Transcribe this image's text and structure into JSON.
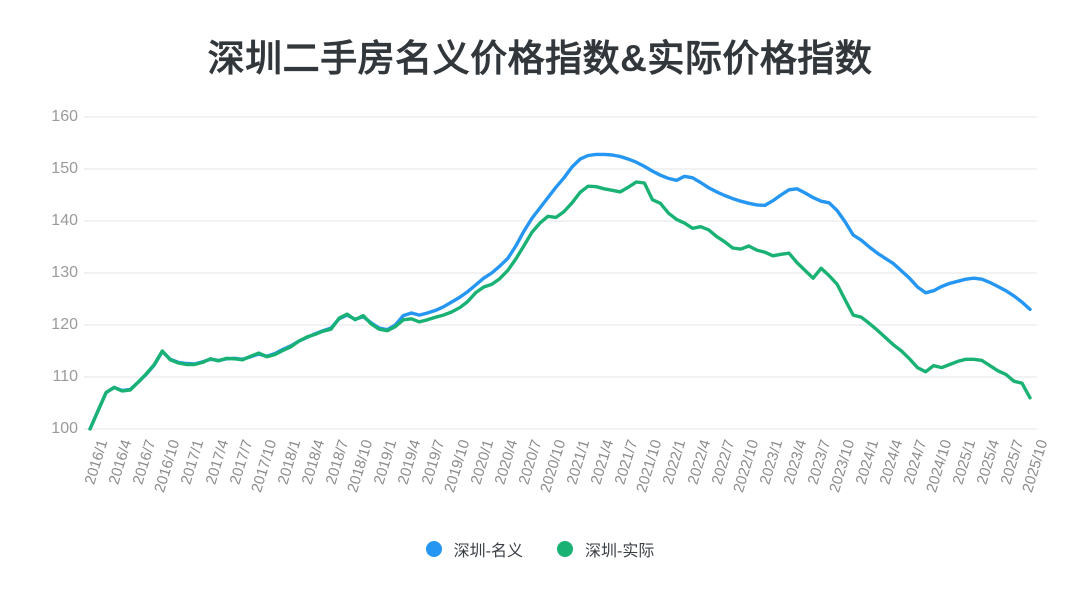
{
  "title": "深圳二手房名义价格指数&实际价格指数",
  "legend": {
    "items": [
      {
        "label": "深圳-名义",
        "color": "#2596f2"
      },
      {
        "label": "深圳-实际",
        "color": "#19b274"
      }
    ]
  },
  "colors": {
    "grid": "#e4e4e4",
    "y_axis_label": "#9a9a9a",
    "x_axis_label": "#8c8c8c",
    "title_text": "#32373c",
    "nominal_line": "#2596f2",
    "real_line": "#19b274"
  },
  "chart_data": {
    "type": "line",
    "title": "深圳二手房名义价格指数&实际价格指数",
    "xlabel": "",
    "ylabel": "",
    "ylim": [
      100,
      160
    ],
    "y_ticks": [
      100,
      110,
      120,
      130,
      140,
      150,
      160
    ],
    "grid": "horizontal",
    "legend_position": "bottom",
    "tick_labels": [
      "2016/1",
      "2016/4",
      "2016/7",
      "2016/10",
      "2017/1",
      "2017/4",
      "2017/7",
      "2017/10",
      "2018/1",
      "2018/4",
      "2018/7",
      "2018/10",
      "2019/1",
      "2019/4",
      "2019/7",
      "2019/10",
      "2020/1",
      "2020/4",
      "2020/7",
      "2020/10",
      "2021/1",
      "2021/4",
      "2021/7",
      "2021/10",
      "2022/1",
      "2022/4",
      "2022/7",
      "2022/10",
      "2023/1",
      "2023/4",
      "2023/7",
      "2023/10",
      "2024/1",
      "2024/4",
      "2024/7",
      "2024/10",
      "2025/1",
      "2025/4",
      "2025/7",
      "2025/10"
    ],
    "months_per_tick": 3,
    "series": [
      {
        "name": "深圳-名义",
        "color": "#2596f2",
        "values": [
          100.0,
          103.5,
          107.0,
          108.0,
          107.4,
          107.6,
          109.0,
          110.5,
          112.3,
          114.9,
          113.4,
          112.8,
          112.6,
          112.5,
          112.9,
          113.4,
          113.2,
          113.5,
          113.6,
          113.4,
          113.9,
          114.4,
          114.0,
          114.5,
          115.3,
          116.0,
          116.9,
          117.6,
          118.3,
          118.9,
          119.4,
          121.2,
          121.9,
          121.1,
          121.6,
          120.4,
          119.4,
          119.1,
          120.0,
          121.8,
          122.3,
          121.9,
          122.3,
          122.8,
          123.5,
          124.4,
          125.3,
          126.4,
          127.7,
          129.0,
          130.0,
          131.3,
          132.8,
          135.2,
          138.0,
          140.5,
          142.5,
          144.5,
          146.5,
          148.3,
          150.4,
          151.9,
          152.6,
          152.8,
          152.8,
          152.7,
          152.4,
          151.9,
          151.3,
          150.5,
          149.6,
          148.8,
          148.2,
          147.8,
          148.6,
          148.3,
          147.4,
          146.4,
          145.6,
          144.9,
          144.3,
          143.8,
          143.4,
          143.1,
          143.0,
          143.9,
          145.0,
          146.0,
          146.2,
          145.4,
          144.5,
          143.8,
          143.5,
          142.0,
          139.8,
          137.3,
          136.3,
          135.0,
          133.8,
          132.8,
          131.8,
          130.4,
          129.0,
          127.3,
          126.2,
          126.6,
          127.4,
          128.0,
          128.4,
          128.8,
          129.0,
          128.8,
          128.2,
          127.4,
          126.6,
          125.6,
          124.4,
          123.0
        ]
      },
      {
        "name": "深圳-实际",
        "color": "#19b274",
        "values": [
          100.0,
          103.5,
          107.0,
          108.0,
          107.3,
          107.5,
          109.0,
          110.6,
          112.4,
          115.0,
          113.3,
          112.7,
          112.4,
          112.4,
          112.8,
          113.5,
          113.1,
          113.6,
          113.5,
          113.3,
          114.0,
          114.6,
          113.9,
          114.3,
          115.1,
          115.8,
          116.9,
          117.7,
          118.2,
          118.8,
          119.2,
          121.3,
          122.1,
          121.0,
          121.8,
          120.2,
          119.2,
          118.9,
          119.7,
          121.0,
          121.2,
          120.6,
          121.0,
          121.5,
          121.9,
          122.5,
          123.3,
          124.5,
          126.2,
          127.3,
          127.8,
          128.9,
          130.5,
          132.7,
          135.2,
          137.8,
          139.6,
          140.9,
          140.7,
          141.8,
          143.5,
          145.5,
          146.7,
          146.6,
          146.2,
          145.9,
          145.6,
          146.5,
          147.5,
          147.3,
          144.1,
          143.4,
          141.5,
          140.3,
          139.6,
          138.6,
          138.9,
          138.3,
          137.0,
          136.0,
          134.8,
          134.6,
          135.2,
          134.4,
          134.0,
          133.3,
          133.6,
          133.8,
          132.0,
          130.5,
          129.0,
          130.9,
          129.5,
          127.8,
          124.8,
          121.9,
          121.5,
          120.3,
          119.0,
          117.6,
          116.2,
          115.0,
          113.5,
          111.8,
          111.0,
          112.2,
          111.8,
          112.4,
          113.0,
          113.4,
          113.4,
          113.2,
          112.2,
          111.2,
          110.5,
          109.2,
          108.8,
          106.0
        ]
      }
    ]
  }
}
